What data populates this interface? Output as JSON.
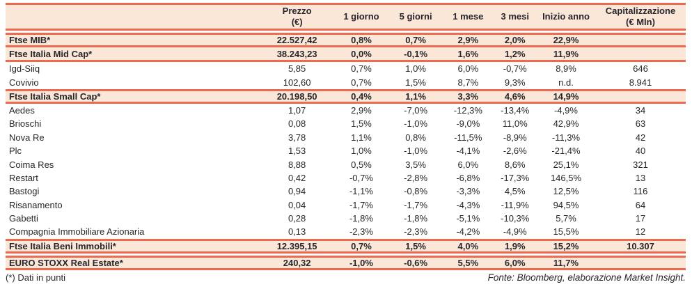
{
  "colors": {
    "rule": "#ec6b50",
    "row_fill": "#fbe7d7",
    "text": "#26262c"
  },
  "chart_data": {
    "type": "table",
    "columns": [
      {
        "line1": "",
        "line2": ""
      },
      {
        "line1": "Prezzo",
        "line2": "(€)"
      },
      {
        "line1": "1 giorno",
        "line2": ""
      },
      {
        "line1": "5 giorni",
        "line2": ""
      },
      {
        "line1": "1 mese",
        "line2": ""
      },
      {
        "line1": "3 mesi",
        "line2": ""
      },
      {
        "line1": "Inizio anno",
        "line2": ""
      },
      {
        "line1": "Capitalizzazione",
        "line2": "(€ Mln)"
      }
    ],
    "rows": [
      {
        "name": "Ftse MIB*",
        "kind": "index",
        "separator_above": true,
        "values": [
          "22.527,42",
          "0,8%",
          "0,7%",
          "2,9%",
          "2,0%",
          "22,9%",
          ""
        ]
      },
      {
        "name": "Ftse Italia Mid Cap*",
        "kind": "index",
        "separator_above": false,
        "values": [
          "38.243,23",
          "0,0%",
          "-0,1%",
          "1,6%",
          "1,2%",
          "11,9%",
          ""
        ]
      },
      {
        "name": "Igd-Siiq",
        "kind": "stock",
        "separator_above": false,
        "values": [
          "5,85",
          "0,7%",
          "1,0%",
          "6,0%",
          "-0,7%",
          "8,9%",
          "646"
        ]
      },
      {
        "name": "Covivio",
        "kind": "stock",
        "separator_above": false,
        "values": [
          "102,60",
          "0,7%",
          "1,5%",
          "8,7%",
          "9,3%",
          "n.d.",
          "8.941"
        ]
      },
      {
        "name": "Ftse Italia Small Cap*",
        "kind": "index",
        "separator_above": false,
        "values": [
          "20.198,50",
          "0,4%",
          "1,1%",
          "3,3%",
          "4,6%",
          "14,9%",
          ""
        ]
      },
      {
        "name": "Aedes",
        "kind": "stock",
        "separator_above": false,
        "values": [
          "1,07",
          "2,9%",
          "-7,0%",
          "-12,3%",
          "-13,4%",
          "-4,9%",
          "34"
        ]
      },
      {
        "name": "Brioschi",
        "kind": "stock",
        "separator_above": false,
        "values": [
          "0,08",
          "1,5%",
          "-1,0%",
          "-9,0%",
          "11,0%",
          "42,9%",
          "63"
        ]
      },
      {
        "name": "Nova Re",
        "kind": "stock",
        "separator_above": false,
        "values": [
          "3,78",
          "1,1%",
          "0,8%",
          "-11,5%",
          "-8,9%",
          "-11,3%",
          "42"
        ]
      },
      {
        "name": "Plc",
        "kind": "stock",
        "separator_above": false,
        "values": [
          "1,53",
          "1,0%",
          "-1,0%",
          "-4,1%",
          "-2,6%",
          "-21,4%",
          "40"
        ]
      },
      {
        "name": "Coima Res",
        "kind": "stock",
        "separator_above": false,
        "values": [
          "8,88",
          "0,5%",
          "3,5%",
          "6,0%",
          "8,6%",
          "25,1%",
          "321"
        ]
      },
      {
        "name": "Restart",
        "kind": "stock",
        "separator_above": false,
        "values": [
          "0,42",
          "-0,7%",
          "-2,8%",
          "-6,8%",
          "-17,3%",
          "146,5%",
          "13"
        ]
      },
      {
        "name": "Bastogi",
        "kind": "stock",
        "separator_above": false,
        "values": [
          "0,94",
          "-1,1%",
          "-0,8%",
          "-3,3%",
          "4,5%",
          "12,5%",
          "116"
        ]
      },
      {
        "name": "Risanamento",
        "kind": "stock",
        "separator_above": false,
        "values": [
          "0,04",
          "-1,7%",
          "-1,7%",
          "-4,3%",
          "-11,9%",
          "94,5%",
          "64"
        ]
      },
      {
        "name": "Gabetti",
        "kind": "stock",
        "separator_above": false,
        "values": [
          "0,28",
          "-1,8%",
          "-1,8%",
          "-5,1%",
          "-10,3%",
          "5,7%",
          "17"
        ]
      },
      {
        "name": "Compagnia Immobiliare Azionaria",
        "kind": "stock",
        "separator_above": false,
        "values": [
          "0,13",
          "-2,3%",
          "-2,3%",
          "-4,2%",
          "-4,9%",
          "15,5%",
          "12"
        ]
      },
      {
        "name": "Ftse Italia Beni Immobili*",
        "kind": "index",
        "separator_above": false,
        "values": [
          "12.395,15",
          "0,7%",
          "1,5%",
          "4,0%",
          "1,9%",
          "15,2%",
          "10.307"
        ]
      },
      {
        "name": "EURO STOXX Real Estate*",
        "kind": "index",
        "separator_above": true,
        "values": [
          "240,32",
          "-1,0%",
          "-0,6%",
          "5,5%",
          "6,0%",
          "11,7%",
          ""
        ]
      }
    ],
    "footnote": "(*) Dati in punti",
    "source": "Fonte: Bloomberg, elaborazione Market Insight."
  }
}
